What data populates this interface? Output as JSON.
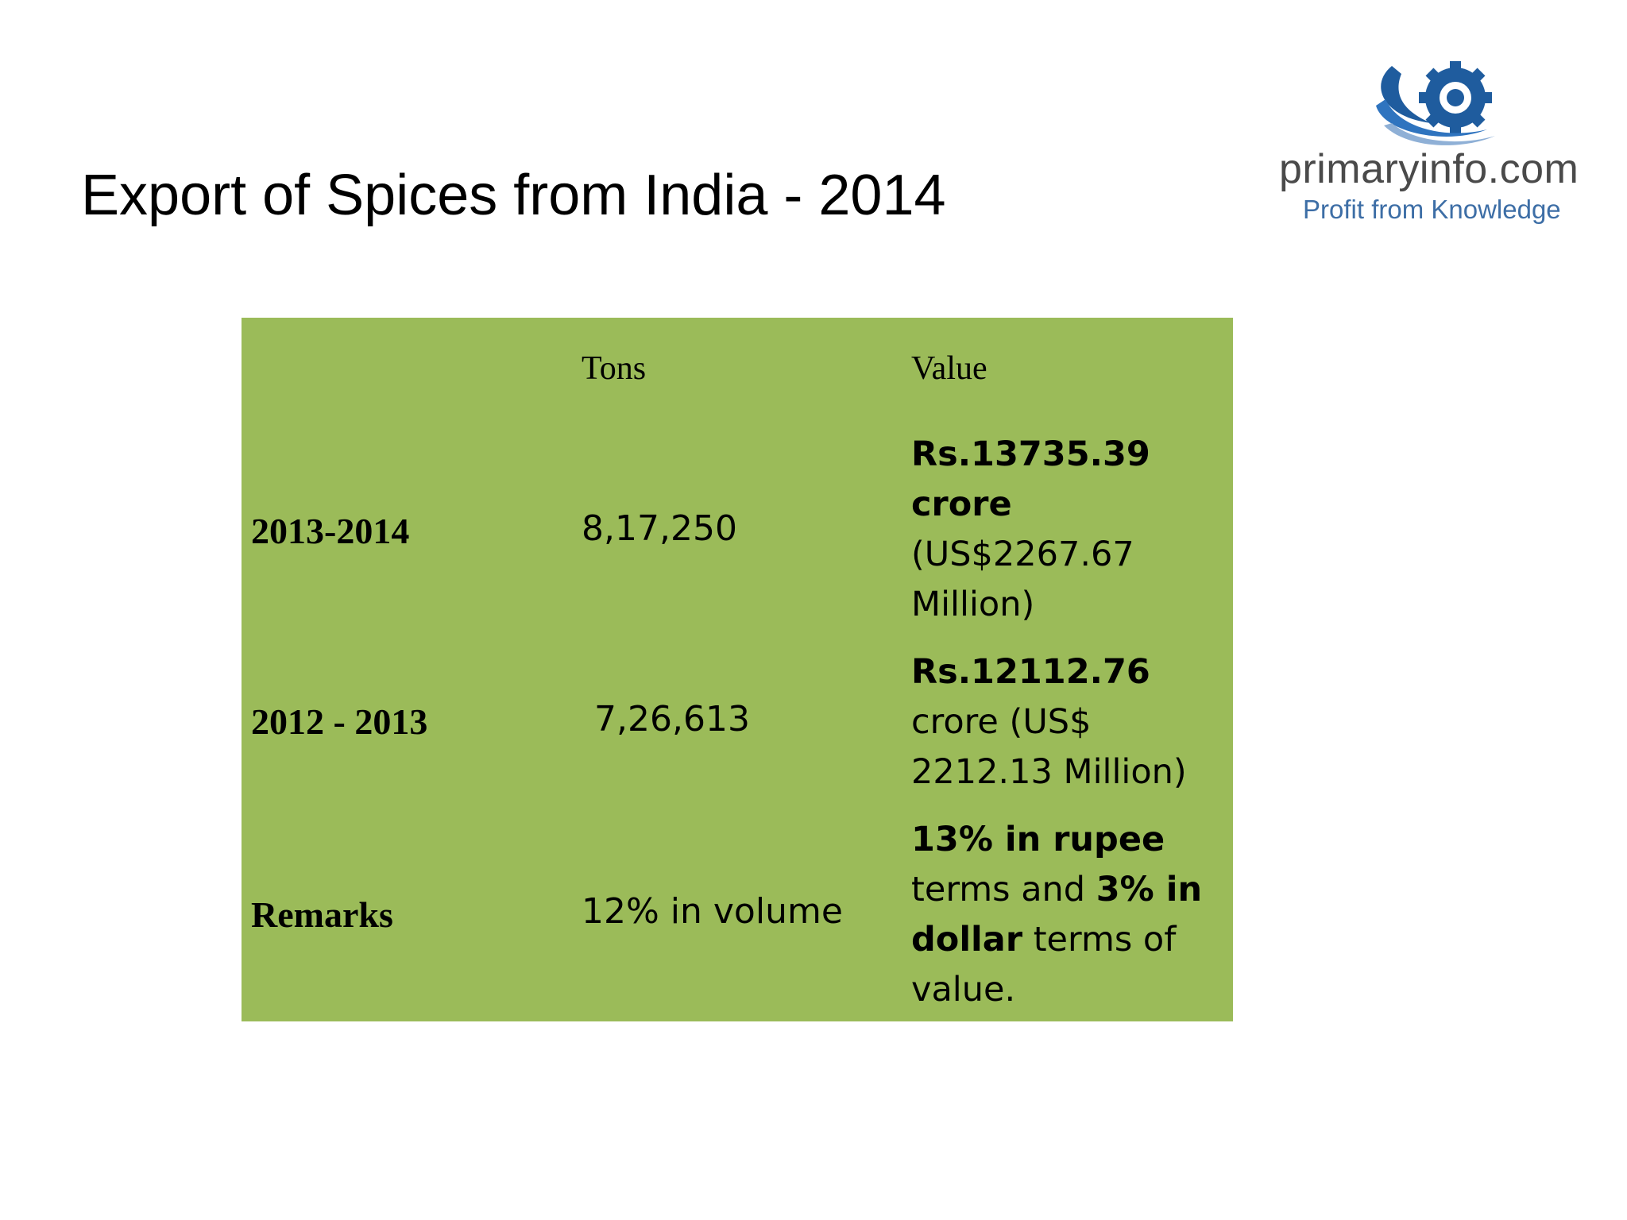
{
  "slide": {
    "title": "Export of Spices from India - 2014"
  },
  "logo": {
    "name": "primaryinfo.com",
    "tagline": "Profit from Knowledge",
    "icon": "globe-gear-icon",
    "colors": {
      "blue": "#1f5c9e",
      "gray": "#4a4a4a"
    }
  },
  "table": {
    "background": "#9bbb59",
    "headers": {
      "tons": "Tons",
      "value": "Value"
    },
    "rows": [
      {
        "label": "2013-2014",
        "tons": "8,17,250",
        "value": {
          "bold": "Rs.13735.39 crore",
          "rest": " (US$2267.67 Million)"
        }
      },
      {
        "label": "2012 - 2013",
        "tons": "7,26,613",
        "value": {
          "bold": "Rs.12112.76",
          "rest": " crore (US$ 2212.13 Million)"
        }
      },
      {
        "label": "Remarks",
        "tons": "12% in volume",
        "value": {
          "part1": "13% in rupee",
          "part2": " terms and ",
          "part3": "3% in dollar",
          "part4": " terms of value."
        }
      }
    ]
  }
}
